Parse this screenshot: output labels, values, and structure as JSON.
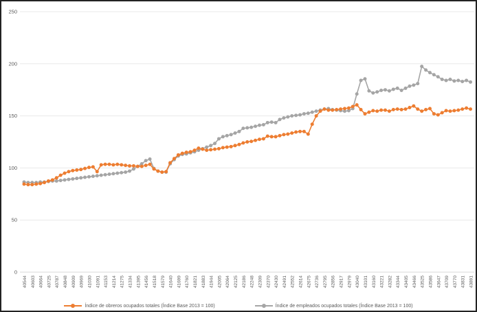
{
  "chart_data": {
    "type": "line",
    "title": "",
    "x_labels": [
      "40544",
      "40603",
      "40664",
      "40725",
      "40787",
      "40848",
      "40909",
      "40969",
      "41030",
      "41091",
      "41153",
      "41214",
      "41275",
      "41334",
      "41395",
      "41456",
      "41518",
      "41579",
      "41640",
      "41699",
      "41760",
      "41821",
      "41883",
      "41944",
      "42005",
      "42064",
      "42125",
      "42186",
      "42248",
      "42309",
      "42370",
      "42430",
      "42491",
      "42552",
      "42614",
      "42675",
      "42736",
      "42795",
      "42856",
      "42917",
      "42979",
      "43040",
      "43101",
      "43160",
      "43221",
      "43282",
      "43344",
      "43405",
      "43466",
      "43525",
      "43586",
      "43647",
      "43709",
      "43770",
      "43831",
      "43891"
    ],
    "x_label_every": 2,
    "yticks": [
      0,
      50,
      100,
      150,
      200,
      250
    ],
    "ylim": [
      0,
      250
    ],
    "grid": "horizontal",
    "gridline_color": "#E8E8E8",
    "axis_line_color": "#D9D9D9",
    "axis_text_color": "#595959",
    "legend_position": "bottom",
    "series": [
      {
        "name": "Índice de obreros ocupados totales (Índice Base 2013 = 100)",
        "color": "#ED7D31",
        "values": [
          84.5,
          84,
          84,
          84.5,
          85,
          86,
          87.5,
          88.5,
          90.5,
          93,
          95,
          96.5,
          97.5,
          98,
          98.5,
          99.5,
          100.5,
          101,
          96.5,
          103,
          103.5,
          103.5,
          103,
          103.5,
          103,
          102.5,
          102,
          102,
          101.5,
          101.5,
          102.5,
          103.5,
          99,
          97,
          96,
          96.5,
          105,
          109,
          112.5,
          114,
          115,
          115.5,
          117,
          119,
          118,
          117,
          117.5,
          118,
          118.5,
          119.5,
          120,
          120.5,
          121.5,
          122.5,
          124,
          125,
          125.5,
          126.5,
          127.5,
          128,
          130.5,
          130,
          130,
          131,
          132,
          132.5,
          133.5,
          134.5,
          135,
          135,
          132.5,
          142,
          150,
          154.5,
          156.5,
          155.5,
          155.5,
          156,
          156.5,
          157,
          157.5,
          159,
          160.5,
          156,
          152,
          153.5,
          155,
          154.5,
          155.5,
          155.5,
          154.5,
          156,
          156.5,
          156,
          156.5,
          158,
          159.5,
          156.5,
          154.5,
          156,
          157,
          152,
          151,
          153,
          155,
          154.5,
          155,
          155.5,
          156.5,
          157.5,
          156.5
        ]
      },
      {
        "name": "Índice de empleados ocupados totales (Índice Base 2013 = 100)",
        "color": "#A5A5A5",
        "values": [
          86.5,
          86,
          86,
          86,
          86.5,
          86.5,
          87,
          87.5,
          87.5,
          88,
          88.5,
          89,
          89.5,
          90,
          90.5,
          91,
          91.5,
          92,
          92.5,
          93,
          93.5,
          94,
          94.5,
          95,
          95.5,
          96,
          97,
          99,
          101.5,
          104,
          107,
          108.5,
          99.5,
          97,
          96,
          96,
          104,
          108,
          111.5,
          113,
          113.5,
          114.5,
          115.5,
          117,
          118.5,
          120,
          121.5,
          123.5,
          128,
          130,
          131,
          132,
          133.5,
          135,
          138,
          138.5,
          139,
          140,
          141,
          141.5,
          143.5,
          144,
          143.5,
          146.5,
          148,
          149,
          150,
          150.5,
          151,
          152,
          152.5,
          153.5,
          154.5,
          155.5,
          156.5,
          157,
          156,
          155.5,
          155,
          154.5,
          155,
          157,
          171,
          184,
          185.5,
          174,
          172,
          173,
          174.5,
          175,
          174,
          175.5,
          176.5,
          174.5,
          176.5,
          178.5,
          179.5,
          181,
          197.5,
          194,
          191.5,
          189.5,
          187.5,
          185,
          184,
          185,
          183.5,
          184,
          183,
          184,
          182.5
        ]
      }
    ]
  }
}
